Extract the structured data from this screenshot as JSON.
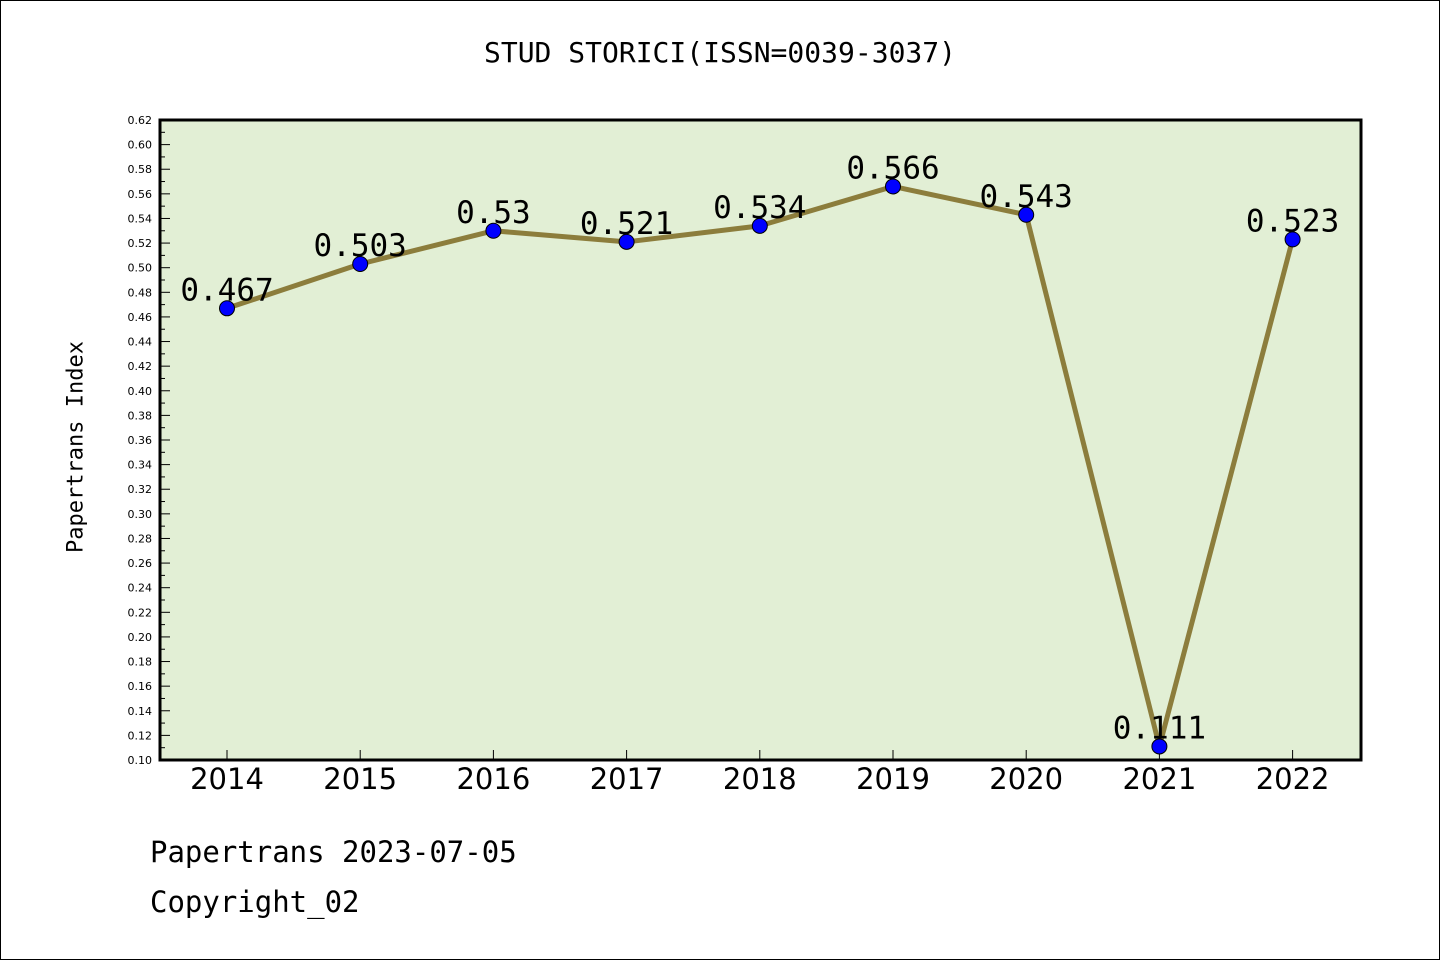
{
  "chart_data": {
    "type": "line",
    "title": "STUD STORICI(ISSN=0039-3037)",
    "xlabel": "",
    "ylabel": "Papertrans Index",
    "categories": [
      "2014",
      "2015",
      "2016",
      "2017",
      "2018",
      "2019",
      "2020",
      "2021",
      "2022"
    ],
    "series": [
      {
        "values": [
          0.467,
          0.503,
          0.53,
          0.521,
          0.534,
          0.566,
          0.543,
          0.111,
          0.523
        ]
      }
    ],
    "data_labels": [
      "0.467",
      "0.503",
      "0.53",
      "0.521",
      "0.534",
      "0.566",
      "0.543",
      "0.111",
      "0.523"
    ],
    "ylim": [
      0.1,
      0.62
    ],
    "y_ticks": [
      "0.10",
      "0.12",
      "0.14",
      "0.16",
      "0.18",
      "0.20",
      "0.22",
      "0.24",
      "0.26",
      "0.28",
      "0.30",
      "0.32",
      "0.34",
      "0.36",
      "0.38",
      "0.40",
      "0.42",
      "0.44",
      "0.46",
      "0.48",
      "0.50",
      "0.52",
      "0.54",
      "0.56",
      "0.58",
      "0.60",
      "0.62"
    ],
    "grid": false,
    "colors": {
      "plot_background": "#e2efd5",
      "line": "#8c7d3c",
      "marker": "#0000ff"
    }
  },
  "footer": {
    "date_line": "Papertrans 2023-07-05",
    "copyright": "Copyright_02"
  }
}
